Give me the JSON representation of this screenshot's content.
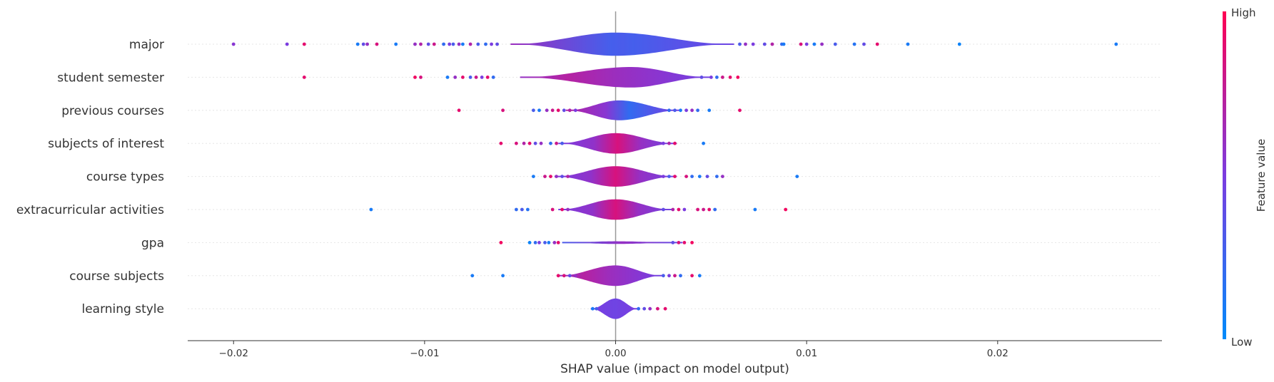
{
  "chart_data": {
    "type": "violin-beeswarm",
    "xlabel": "SHAP value (impact on model output)",
    "xlim": [
      -0.0224,
      0.0286
    ],
    "x_ticks": [
      {
        "value": -0.02,
        "label": "−0.02"
      },
      {
        "value": -0.01,
        "label": "−0.01"
      },
      {
        "value": 0.0,
        "label": "0.00"
      },
      {
        "value": 0.01,
        "label": "0.01"
      },
      {
        "value": 0.02,
        "label": "0.02"
      }
    ],
    "colorbar": {
      "title": "Feature value",
      "high_label": "High",
      "low_label": "Low",
      "high_color": "#ff0052",
      "low_color": "#008bfb"
    },
    "colors": {
      "mid": "#7b3ce0",
      "axis": "#333333",
      "zero_line": "#999999",
      "grid": "#e6e6e6"
    },
    "features": [
      {
        "name": "major",
        "spread_neg": 0.0055,
        "spread_pos": 0.0062,
        "height": 0.7,
        "center_offset": 0.0,
        "color_mode": "blue-center",
        "points": [
          [
            -0.02,
            0.55
          ],
          [
            -0.0172,
            0.5
          ],
          [
            -0.0163,
            0.9
          ],
          [
            -0.0135,
            0.1
          ],
          [
            -0.0132,
            0.4
          ],
          [
            -0.013,
            0.6
          ],
          [
            -0.0125,
            0.85
          ],
          [
            -0.0115,
            0.1
          ],
          [
            -0.0105,
            0.6
          ],
          [
            -0.0102,
            0.7
          ],
          [
            -0.0098,
            0.4
          ],
          [
            -0.0095,
            0.8
          ],
          [
            -0.009,
            0.2
          ],
          [
            -0.0087,
            0.5
          ],
          [
            -0.0085,
            0.3
          ],
          [
            -0.0082,
            0.6
          ],
          [
            -0.008,
            0.1
          ],
          [
            -0.0076,
            0.7
          ],
          [
            -0.0072,
            0.3
          ],
          [
            -0.0068,
            0.2
          ],
          [
            -0.0065,
            0.5
          ],
          [
            -0.0062,
            0.4
          ],
          [
            0.0065,
            0.3
          ],
          [
            0.0068,
            0.6
          ],
          [
            0.0072,
            0.5
          ],
          [
            0.0078,
            0.4
          ],
          [
            0.0082,
            0.7
          ],
          [
            0.0087,
            0.2
          ],
          [
            0.0088,
            0.1
          ],
          [
            0.0097,
            0.85
          ],
          [
            0.01,
            0.5
          ],
          [
            0.0104,
            0.1
          ],
          [
            0.0108,
            0.6
          ],
          [
            0.0115,
            0.3
          ],
          [
            0.0125,
            0.15
          ],
          [
            0.013,
            0.4
          ],
          [
            0.0137,
            0.9
          ],
          [
            0.0153,
            0.1
          ],
          [
            0.018,
            0.05
          ],
          [
            0.0262,
            0.1
          ]
        ]
      },
      {
        "name": "student semester",
        "spread_neg": 0.0058,
        "spread_pos": 0.0042,
        "height": 0.62,
        "center_offset": 0.0008,
        "color_mode": "red-left",
        "points": [
          [
            -0.0163,
            0.9
          ],
          [
            -0.0105,
            0.95
          ],
          [
            -0.0102,
            0.85
          ],
          [
            -0.0088,
            0.1
          ],
          [
            -0.0084,
            0.6
          ],
          [
            -0.008,
            0.9
          ],
          [
            -0.0076,
            0.3
          ],
          [
            -0.0073,
            0.8
          ],
          [
            -0.007,
            0.5
          ],
          [
            -0.0067,
            0.9
          ],
          [
            -0.0064,
            0.2
          ],
          [
            0.0045,
            0.4
          ],
          [
            0.005,
            0.5
          ],
          [
            0.0053,
            0.2
          ],
          [
            0.0056,
            0.8
          ],
          [
            0.006,
            0.9
          ],
          [
            0.0064,
            0.95
          ]
        ]
      },
      {
        "name": "previous courses",
        "spread_neg": 0.0028,
        "spread_pos": 0.0032,
        "height": 0.6,
        "center_offset": 0.0002,
        "color_mode": "blue-right",
        "points": [
          [
            -0.0082,
            0.9
          ],
          [
            -0.0059,
            0.85
          ],
          [
            -0.0043,
            0.3
          ],
          [
            -0.004,
            0.1
          ],
          [
            -0.0036,
            0.6
          ],
          [
            -0.0033,
            0.8
          ],
          [
            -0.003,
            0.9
          ],
          [
            -0.0027,
            0.4
          ],
          [
            -0.0024,
            0.7
          ],
          [
            -0.0021,
            0.5
          ],
          [
            0.0028,
            0.2
          ],
          [
            0.0031,
            0.3
          ],
          [
            0.0034,
            0.1
          ],
          [
            0.0037,
            0.5
          ],
          [
            0.004,
            0.6
          ],
          [
            0.0043,
            0.2
          ],
          [
            0.0049,
            0.1
          ],
          [
            0.0065,
            0.9
          ]
        ]
      },
      {
        "name": "subjects of interest",
        "spread_neg": 0.003,
        "spread_pos": 0.0032,
        "height": 0.62,
        "center_offset": 0.0,
        "color_mode": "red-center",
        "points": [
          [
            -0.006,
            0.9
          ],
          [
            -0.0052,
            0.85
          ],
          [
            -0.0048,
            0.7
          ],
          [
            -0.0045,
            0.9
          ],
          [
            -0.0042,
            0.4
          ],
          [
            -0.0039,
            0.6
          ],
          [
            -0.0034,
            0.2
          ],
          [
            -0.0031,
            0.8
          ],
          [
            -0.0028,
            0.3
          ],
          [
            0.0025,
            0.5
          ],
          [
            0.0028,
            0.7
          ],
          [
            0.0031,
            0.9
          ],
          [
            0.0046,
            0.1
          ]
        ]
      },
      {
        "name": "course types",
        "spread_neg": 0.0032,
        "spread_pos": 0.0032,
        "height": 0.62,
        "center_offset": 0.0,
        "color_mode": "red-center",
        "points": [
          [
            -0.0043,
            0.1
          ],
          [
            -0.0037,
            0.8
          ],
          [
            -0.0034,
            0.9
          ],
          [
            -0.0031,
            0.6
          ],
          [
            -0.0028,
            0.4
          ],
          [
            -0.0025,
            0.7
          ],
          [
            0.0025,
            0.5
          ],
          [
            0.0028,
            0.3
          ],
          [
            0.0031,
            0.9
          ],
          [
            0.0037,
            0.85
          ],
          [
            0.004,
            0.2
          ],
          [
            0.0044,
            0.1
          ],
          [
            0.0048,
            0.4
          ],
          [
            0.0053,
            0.2
          ],
          [
            0.0056,
            0.6
          ],
          [
            0.0095,
            0.1
          ]
        ]
      },
      {
        "name": "extracurricular activities",
        "spread_neg": 0.003,
        "spread_pos": 0.003,
        "height": 0.62,
        "center_offset": 0.0,
        "color_mode": "red-center",
        "points": [
          [
            -0.0128,
            0.1
          ],
          [
            -0.0052,
            0.2
          ],
          [
            -0.0049,
            0.3
          ],
          [
            -0.0046,
            0.15
          ],
          [
            -0.0033,
            0.85
          ],
          [
            -0.0028,
            0.9
          ],
          [
            -0.0025,
            0.6
          ],
          [
            0.0025,
            0.4
          ],
          [
            0.003,
            0.7
          ],
          [
            0.0033,
            0.9
          ],
          [
            0.0036,
            0.5
          ],
          [
            0.0043,
            0.85
          ],
          [
            0.0046,
            0.8
          ],
          [
            0.0049,
            0.9
          ],
          [
            0.0052,
            0.2
          ],
          [
            0.0073,
            0.1
          ],
          [
            0.0089,
            0.95
          ]
        ]
      },
      {
        "name": "gpa",
        "spread_neg": 0.0028,
        "spread_pos": 0.0035,
        "height": 0.08,
        "center_offset": 0.0,
        "color_mode": "mixed-strip",
        "points": [
          [
            -0.006,
            0.95
          ],
          [
            -0.0045,
            0.05
          ],
          [
            -0.0042,
            0.2
          ],
          [
            -0.004,
            0.5
          ],
          [
            -0.0037,
            0.3
          ],
          [
            -0.0035,
            0.1
          ],
          [
            -0.0032,
            0.6
          ],
          [
            -0.003,
            0.9
          ],
          [
            0.003,
            0.4
          ],
          [
            0.0033,
            0.85
          ],
          [
            0.0036,
            0.9
          ],
          [
            0.004,
            0.95
          ]
        ]
      },
      {
        "name": "course subjects",
        "spread_neg": 0.003,
        "spread_pos": 0.0025,
        "height": 0.62,
        "center_offset": 0.0,
        "color_mode": "red-left",
        "points": [
          [
            -0.0075,
            0.1
          ],
          [
            -0.0059,
            0.1
          ],
          [
            -0.003,
            0.9
          ],
          [
            -0.0027,
            0.85
          ],
          [
            -0.0024,
            0.4
          ],
          [
            -0.0021,
            0.6
          ],
          [
            0.0025,
            0.3
          ],
          [
            0.0028,
            0.5
          ],
          [
            0.0031,
            0.8
          ],
          [
            0.0034,
            0.2
          ],
          [
            0.004,
            0.9
          ],
          [
            0.0044,
            0.1
          ]
        ]
      },
      {
        "name": "learning style",
        "spread_neg": 0.0013,
        "spread_pos": 0.0012,
        "height": 0.62,
        "center_offset": 0.0,
        "color_mode": "purple",
        "points": [
          [
            -0.0012,
            0.1
          ],
          [
            -0.001,
            0.3
          ],
          [
            0.0012,
            0.2
          ],
          [
            0.0015,
            0.4
          ],
          [
            0.0018,
            0.6
          ],
          [
            0.0022,
            0.85
          ],
          [
            0.0026,
            0.9
          ]
        ]
      }
    ]
  }
}
